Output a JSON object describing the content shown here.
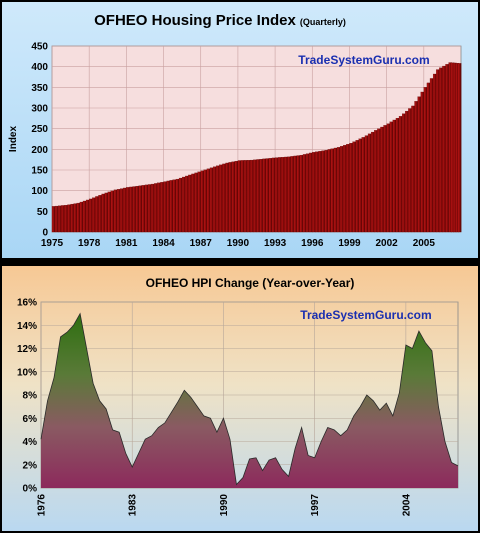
{
  "chart_data": [
    {
      "type": "bar",
      "title": "OFHEO Housing Price Index",
      "subtitle": "(Quarterly)",
      "watermark": "TradeSystemGuru.com",
      "xlabel": "",
      "ylabel": "Index",
      "ylim": [
        0,
        450
      ],
      "yticks": [
        0,
        50,
        100,
        150,
        200,
        250,
        300,
        350,
        400,
        450
      ],
      "xlim": [
        1975,
        2008
      ],
      "xticks": [
        "1975",
        "1978",
        "1981",
        "1984",
        "1987",
        "1990",
        "1993",
        "1996",
        "1999",
        "2002",
        "2005"
      ],
      "grid": true,
      "colors": {
        "bar": "#b81414",
        "bar_dark": "#4a0000",
        "plot_bg": "#f6dede",
        "panel_bg": "#cfe9fb",
        "title": "#000000",
        "watermark": "#1a2fb0"
      },
      "series": [
        {
          "x": [
            1975,
            1976,
            1977,
            1978,
            1979,
            1980,
            1981,
            1982,
            1983,
            1984,
            1985,
            1986,
            1987,
            1988,
            1989,
            1990,
            1991,
            1992,
            1993,
            1994,
            1995,
            1996,
            1997,
            1998,
            1999,
            2000,
            2001,
            2002,
            2003,
            2004,
            2005,
            2006,
            2007,
            2007.75
          ],
          "values": [
            62,
            65,
            70,
            80,
            92,
            102,
            108,
            112,
            116,
            122,
            128,
            138,
            148,
            158,
            167,
            173,
            174,
            177,
            180,
            182,
            186,
            193,
            198,
            205,
            215,
            229,
            246,
            262,
            280,
            305,
            350,
            393,
            410,
            408
          ]
        }
      ]
    },
    {
      "type": "area",
      "title": "OFHEO HPI Change (Year-over-Year)",
      "watermark": "TradeSystemGuru.com",
      "xlabel": "",
      "ylabel": "",
      "ylim": [
        0,
        16
      ],
      "yticks": [
        "0%",
        "2%",
        "4%",
        "6%",
        "8%",
        "10%",
        "12%",
        "14%",
        "16%"
      ],
      "xlim": [
        1976,
        2008
      ],
      "xticks": [
        "1976",
        "1983",
        "1990",
        "1997",
        "2004"
      ],
      "grid": true,
      "colors": {
        "fill_top": "#2e6f10",
        "fill_bottom": "#8c2a5c",
        "line": "#2a2a2a",
        "watermark": "#1a2fb0"
      },
      "series": [
        {
          "x": [
            1976,
            1976.5,
            1977,
            1977.5,
            1978,
            1978.5,
            1979,
            1979.5,
            1980,
            1980.5,
            1981,
            1981.5,
            1982,
            1982.5,
            1983,
            1983.5,
            1984,
            1984.5,
            1985,
            1985.5,
            1986,
            1986.5,
            1987,
            1987.5,
            1988,
            1988.5,
            1989,
            1989.5,
            1990,
            1990.5,
            1991,
            1991.5,
            1992,
            1992.5,
            1993,
            1993.5,
            1994,
            1994.5,
            1995,
            1995.5,
            1996,
            1996.5,
            1997,
            1997.5,
            1998,
            1998.5,
            1999,
            1999.5,
            2000,
            2000.5,
            2001,
            2001.5,
            2002,
            2002.5,
            2003,
            2003.5,
            2004,
            2004.5,
            2005,
            2005.5,
            2006,
            2006.5,
            2007,
            2007.5,
            2008
          ],
          "values": [
            4.2,
            7.5,
            9.5,
            13.0,
            13.4,
            14.0,
            15.0,
            12.0,
            9.0,
            7.5,
            6.8,
            5.0,
            4.8,
            3.0,
            1.8,
            3.0,
            4.2,
            4.5,
            5.2,
            5.6,
            6.5,
            7.4,
            8.4,
            7.8,
            7.0,
            6.2,
            6.0,
            4.8,
            6.0,
            4.2,
            0.3,
            0.9,
            2.5,
            2.6,
            1.5,
            2.4,
            2.6,
            1.6,
            1.0,
            3.4,
            5.2,
            2.8,
            2.6,
            4.0,
            5.2,
            5.0,
            4.5,
            5.0,
            6.2,
            7.0,
            8.0,
            7.5,
            6.7,
            7.3,
            6.2,
            8.2,
            12.3,
            12.0,
            13.5,
            12.5,
            11.8,
            7.0,
            4.0,
            2.2,
            1.9
          ]
        }
      ]
    }
  ]
}
